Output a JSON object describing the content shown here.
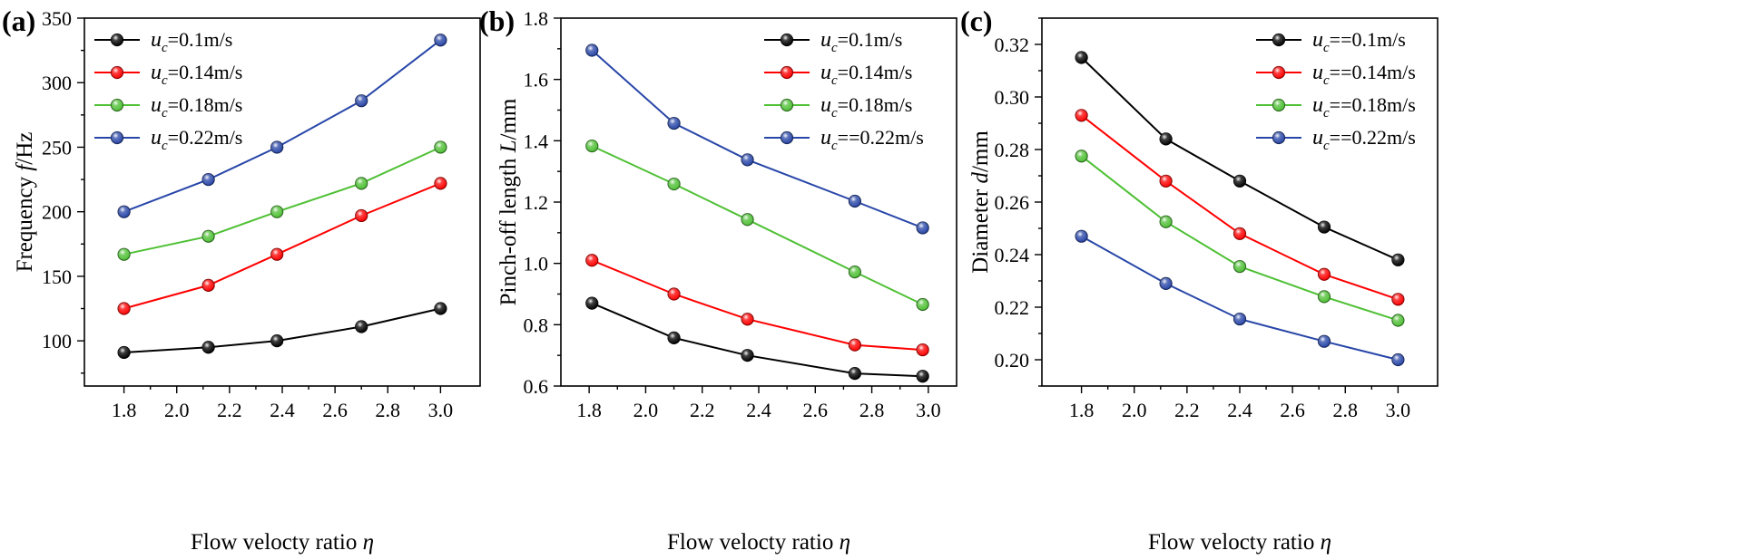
{
  "chart_data": [
    {
      "type": "line",
      "panel_label": "(a)",
      "ylabel_parts": [
        "Frequency ",
        "f",
        "/Hz"
      ],
      "xlabel_parts": [
        "Flow velocty ratio ",
        "η"
      ],
      "xlim": [
        1.65,
        3.15
      ],
      "ylim": [
        65,
        350
      ],
      "x_ticks": [
        "1.8",
        "2.0",
        "2.2",
        "2.4",
        "2.6",
        "2.8",
        "3.0"
      ],
      "y_ticks": [
        "100",
        "150",
        "200",
        "250",
        "300",
        "350"
      ],
      "legend_position": "top-left",
      "x": [
        1.8,
        2.12,
        2.38,
        2.7,
        3.0
      ],
      "series": [
        {
          "name_main": "u",
          "name_sub": "c",
          "name_rest": "=0.1m/s",
          "color": "#000000",
          "values": [
            91,
            95,
            100,
            111,
            125
          ]
        },
        {
          "name_main": "u",
          "name_sub": "c",
          "name_rest": "=0.14m/s",
          "color": "#ff0000",
          "values": [
            125,
            143,
            167,
            197,
            222
          ]
        },
        {
          "name_main": "u",
          "name_sub": "c",
          "name_rest": "=0.18m/s",
          "color": "#4ec034",
          "values": [
            167,
            181,
            200,
            222,
            250
          ]
        },
        {
          "name_main": "u",
          "name_sub": "c",
          "name_rest": "=0.22m/s",
          "color": "#2846a8",
          "values": [
            200,
            225,
            250,
            286,
            333
          ]
        }
      ]
    },
    {
      "type": "line",
      "panel_label": "(b)",
      "ylabel_parts": [
        "Pinch-off length ",
        "L",
        "/mm"
      ],
      "xlabel_parts": [
        "Flow velocty ratio ",
        "η"
      ],
      "xlim": [
        1.7,
        3.1
      ],
      "ylim": [
        0.6,
        1.8
      ],
      "x_ticks": [
        "1.8",
        "2.0",
        "2.2",
        "2.4",
        "2.6",
        "2.8",
        "3.0"
      ],
      "y_ticks": [
        "0.6",
        "0.8",
        "1.0",
        "1.2",
        "1.4",
        "1.6",
        "1.8"
      ],
      "legend_position": "top-right",
      "x": [
        1.81,
        2.1,
        2.36,
        2.74,
        2.98
      ],
      "series": [
        {
          "name_main": "u",
          "name_sub": "c",
          "name_rest": "=0.1m/s",
          "color": "#000000",
          "values": [
            0.87,
            0.757,
            0.7,
            0.641,
            0.632
          ]
        },
        {
          "name_main": "u",
          "name_sub": "c",
          "name_rest": "=0.14m/s",
          "color": "#ff0000",
          "values": [
            1.01,
            0.9,
            0.818,
            0.734,
            0.718
          ]
        },
        {
          "name_main": "u",
          "name_sub": "c",
          "name_rest": "=0.18m/s",
          "color": "#4ec034",
          "values": [
            1.383,
            1.259,
            1.143,
            0.972,
            0.866
          ]
        },
        {
          "name_main": "u",
          "name_sub": "c",
          "name_rest": "==0.22m/s",
          "color": "#2846a8",
          "values": [
            1.695,
            1.457,
            1.338,
            1.203,
            1.116
          ]
        }
      ]
    },
    {
      "type": "line",
      "panel_label": "(c)",
      "ylabel_parts": [
        "Diameter ",
        "d",
        "/mm"
      ],
      "xlabel_parts": [
        "Flow velocty ratio ",
        "η"
      ],
      "xlim": [
        1.65,
        3.15
      ],
      "ylim": [
        0.19,
        0.33
      ],
      "x_ticks": [
        "1.8",
        "2.0",
        "2.2",
        "2.4",
        "2.6",
        "2.8",
        "3.0"
      ],
      "y_ticks": [
        "0.20",
        "0.22",
        "0.24",
        "0.26",
        "0.28",
        "0.30",
        "0.32"
      ],
      "legend_position": "top-right",
      "x": [
        1.8,
        2.12,
        2.4,
        2.72,
        3.0
      ],
      "series": [
        {
          "name_main": "u",
          "name_sub": "c",
          "name_rest": "==0.1m/s",
          "color": "#000000",
          "values": [
            0.315,
            0.284,
            0.268,
            0.2505,
            0.238
          ]
        },
        {
          "name_main": "u",
          "name_sub": "c",
          "name_rest": "==0.14m/s",
          "color": "#ff0000",
          "values": [
            0.293,
            0.268,
            0.248,
            0.2325,
            0.223
          ]
        },
        {
          "name_main": "u",
          "name_sub": "c",
          "name_rest": "==0.18m/s",
          "color": "#4ec034",
          "values": [
            0.2775,
            0.2525,
            0.2355,
            0.224,
            0.215
          ]
        },
        {
          "name_main": "u",
          "name_sub": "c",
          "name_rest": "==0.22m/s",
          "color": "#2846a8",
          "values": [
            0.247,
            0.229,
            0.2155,
            0.207,
            0.2
          ]
        }
      ]
    }
  ]
}
